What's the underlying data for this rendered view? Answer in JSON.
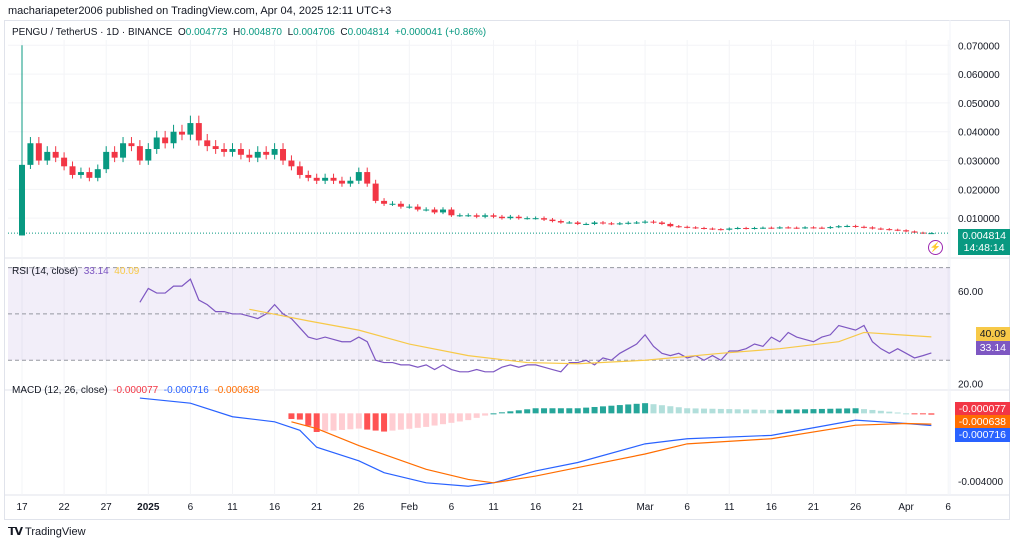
{
  "header": {
    "published": "machariapeter2006 published on TradingView.com, Apr 04, 2025 12:11 UTC+3"
  },
  "symbol": {
    "title": "PENGU / TetherUS · 1D · BINANCE",
    "o_label": "O",
    "o": "0.004773",
    "h_label": "H",
    "h": "0.004870",
    "l_label": "L",
    "l": "0.004706",
    "c_label": "C",
    "c": "0.004814",
    "change": "+0.000041 (+0.86%)"
  },
  "price_tag": {
    "value": "0.004814",
    "countdown": "14:48:14"
  },
  "rsi_legend": {
    "title": "RSI (14, close)",
    "rsi": "33.14",
    "ma": "40.09"
  },
  "macd_legend": {
    "title": "MACD (12, 26, close)",
    "hist": "-0.000077",
    "macd": "-0.000716",
    "signal": "-0.000638"
  },
  "footer": {
    "brand": "TradingView"
  },
  "colors": {
    "up": "#089981",
    "down": "#f23645",
    "rsi": "#7e57c2",
    "rsi_ma": "#f7c948",
    "macd": "#2962ff",
    "signal": "#ff6d00"
  },
  "chart_data": [
    {
      "type": "candlestick",
      "title": "PENGU / TetherUS · 1D · BINANCE",
      "start_date": "2024-12-17",
      "first_open": 0.004,
      "first_high": 0.07,
      "first_low": 0.004,
      "closes": [
        0.0285,
        0.036,
        0.03,
        0.033,
        0.031,
        0.028,
        0.025,
        0.026,
        0.024,
        0.027,
        0.033,
        0.031,
        0.036,
        0.035,
        0.03,
        0.034,
        0.038,
        0.036,
        0.04,
        0.039,
        0.043,
        0.037,
        0.035,
        0.034,
        0.033,
        0.034,
        0.032,
        0.031,
        0.033,
        0.032,
        0.034,
        0.03,
        0.028,
        0.025,
        0.024,
        0.023,
        0.024,
        0.023,
        0.022,
        0.023,
        0.026,
        0.022,
        0.016,
        0.015,
        0.015,
        0.014,
        0.014,
        0.013,
        0.013,
        0.012,
        0.013,
        0.011,
        0.011,
        0.011,
        0.0105,
        0.011,
        0.0105,
        0.01,
        0.0105,
        0.01,
        0.01,
        0.01,
        0.0095,
        0.009,
        0.0085,
        0.0085,
        0.008,
        0.008,
        0.0085,
        0.0082,
        0.008,
        0.0082,
        0.0084,
        0.0085,
        0.0088,
        0.0085,
        0.008,
        0.0072,
        0.007,
        0.0068,
        0.0066,
        0.0064,
        0.0062,
        0.006,
        0.0064,
        0.0066,
        0.0064,
        0.0066,
        0.0067,
        0.0066,
        0.0068,
        0.0067,
        0.0066,
        0.0068,
        0.0067,
        0.0066,
        0.0069,
        0.0072,
        0.0073,
        0.007,
        0.0068,
        0.0064,
        0.0062,
        0.006,
        0.0058,
        0.0054,
        0.005,
        0.004773,
        0.004814
      ],
      "y_ticks": [
        "0.070000",
        "0.060000",
        "0.050000",
        "0.040000",
        "0.030000",
        "0.020000",
        "0.010000"
      ],
      "y_tick_values": [
        0.07,
        0.06,
        0.05,
        0.04,
        0.03,
        0.02,
        0.01
      ],
      "ylim": [
        0,
        0.074
      ],
      "x_ticks": [
        [
          "2024-12-17",
          "17"
        ],
        [
          "2024-12-22",
          "22"
        ],
        [
          "2024-12-27",
          "27"
        ],
        [
          "2025-01-01",
          "2025"
        ],
        [
          "2025-01-06",
          "6"
        ],
        [
          "2025-01-11",
          "11"
        ],
        [
          "2025-01-16",
          "16"
        ],
        [
          "2025-01-21",
          "21"
        ],
        [
          "2025-01-26",
          "26"
        ],
        [
          "2025-02-01",
          "Feb"
        ],
        [
          "2025-02-06",
          "6"
        ],
        [
          "2025-02-11",
          "11"
        ],
        [
          "2025-02-16",
          "16"
        ],
        [
          "2025-02-21",
          "21"
        ],
        [
          "2025-03-01",
          "Mar"
        ],
        [
          "2025-03-06",
          "6"
        ],
        [
          "2025-03-11",
          "11"
        ],
        [
          "2025-03-16",
          "16"
        ],
        [
          "2025-03-21",
          "21"
        ],
        [
          "2025-03-26",
          "26"
        ],
        [
          "2025-04-01",
          "Apr"
        ],
        [
          "2025-04-06",
          "6"
        ]
      ]
    },
    {
      "type": "line",
      "title": "RSI (14, close)",
      "ylim": [
        15,
        75
      ],
      "bands": [
        70,
        50,
        30
      ],
      "y_ticks": [
        "60.00",
        "20.00"
      ],
      "y_tick_values": [
        60,
        20
      ],
      "rsi_start": "2024-12-31",
      "rsi": [
        55,
        61,
        59,
        59,
        62,
        62,
        65,
        56,
        54,
        51,
        51,
        50,
        50,
        49,
        48,
        50,
        54,
        50,
        48,
        44,
        40,
        39,
        40,
        39,
        38,
        38,
        40,
        38,
        30,
        29,
        29,
        28,
        28,
        27,
        28,
        26,
        28,
        26,
        25,
        25,
        26,
        25,
        25,
        27,
        28,
        27,
        28,
        28,
        27,
        26,
        25,
        29,
        29,
        30,
        28,
        31,
        30,
        33,
        35,
        37,
        41,
        36,
        33,
        32,
        33,
        31,
        32,
        30,
        32,
        30,
        34,
        34,
        35,
        37,
        36,
        40,
        38,
        42,
        40,
        39,
        38,
        40,
        41,
        45,
        44,
        43,
        45,
        38,
        35,
        33,
        35,
        33,
        31,
        32,
        33.14
      ],
      "rsi_ma": [
        [
          "2025-01-13",
          52
        ],
        [
          "2025-01-20",
          47
        ],
        [
          "2025-01-26",
          43
        ],
        [
          "2025-02-01",
          37
        ],
        [
          "2025-02-08",
          32
        ],
        [
          "2025-02-15",
          29
        ],
        [
          "2025-02-21",
          28.5
        ],
        [
          "2025-03-01",
          30
        ],
        [
          "2025-03-10",
          33
        ],
        [
          "2025-03-17",
          35
        ],
        [
          "2025-03-24",
          38
        ],
        [
          "2025-03-27",
          42
        ],
        [
          "2025-04-04",
          40.09
        ]
      ]
    },
    {
      "type": "line+histogram",
      "title": "MACD (12, 26, close)",
      "ylim": [
        -0.0047,
        0.0012
      ],
      "y_ticks": [
        "-0.004000"
      ],
      "y_tick_values": [
        -0.004
      ],
      "macd": [
        [
          "2024-12-31",
          0.0009
        ],
        [
          "2025-01-06",
          0.0006
        ],
        [
          "2025-01-11",
          -0.0002
        ],
        [
          "2025-01-16",
          -0.0005
        ],
        [
          "2025-01-19",
          -0.001
        ],
        [
          "2025-01-21",
          -0.002
        ],
        [
          "2025-01-26",
          -0.0028
        ],
        [
          "2025-01-29",
          -0.0035
        ],
        [
          "2025-02-03",
          -0.0041
        ],
        [
          "2025-02-08",
          -0.0043
        ],
        [
          "2025-02-11",
          -0.0041
        ],
        [
          "2025-02-16",
          -0.0034
        ],
        [
          "2025-02-21",
          -0.0029
        ],
        [
          "2025-03-01",
          -0.0018
        ],
        [
          "2025-03-06",
          -0.0015
        ],
        [
          "2025-03-16",
          -0.0013
        ],
        [
          "2025-03-26",
          -0.0004
        ],
        [
          "2025-04-01",
          -0.0006
        ],
        [
          "2025-04-04",
          -0.000716
        ]
      ],
      "signal": [
        [
          "2025-01-18",
          -0.0005
        ],
        [
          "2025-01-21",
          -0.0009
        ],
        [
          "2025-01-26",
          -0.0019
        ],
        [
          "2025-02-03",
          -0.0033
        ],
        [
          "2025-02-08",
          -0.0039
        ],
        [
          "2025-02-11",
          -0.0041
        ],
        [
          "2025-02-16",
          -0.0037
        ],
        [
          "2025-02-21",
          -0.0032
        ],
        [
          "2025-03-01",
          -0.0024
        ],
        [
          "2025-03-06",
          -0.0018
        ],
        [
          "2025-03-16",
          -0.0015
        ],
        [
          "2025-03-26",
          -0.0007
        ],
        [
          "2025-04-01",
          -0.0006
        ],
        [
          "2025-04-04",
          -0.000638
        ]
      ]
    }
  ]
}
